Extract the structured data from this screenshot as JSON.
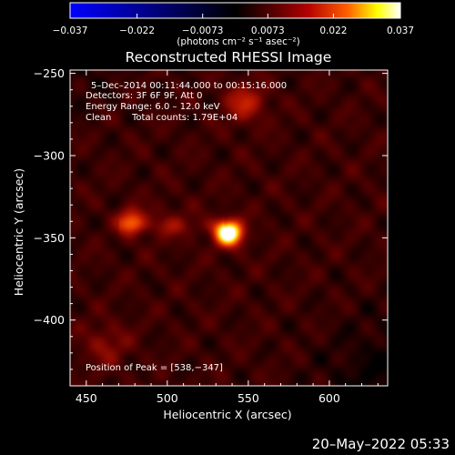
{
  "chart_data": {
    "type": "heatmap",
    "title": "Reconstructed RHESSI Image",
    "xlabel": "Heliocentric X (arcsec)",
    "ylabel": "Heliocentric Y (arcsec)",
    "xlim": [
      440,
      636
    ],
    "ylim": [
      -440,
      -248
    ],
    "x_ticks": [
      450,
      500,
      550,
      600
    ],
    "y_ticks": [
      -250,
      -300,
      -350,
      -400
    ],
    "colorbar": {
      "range": [
        -0.037,
        0.037
      ],
      "tick_labels": [
        "−0.037",
        "−0.022",
        "−0.0073",
        "0.0073",
        "0.022",
        "0.037"
      ],
      "tick_values": [
        -0.037,
        -0.022,
        -0.0073,
        0.0073,
        0.022,
        0.037
      ],
      "unit_label": "(photons cm⁻² s⁻¹ asec⁻²)",
      "colors": [
        "#0000ff",
        "#000000",
        "#5a0000",
        "#b40000",
        "#ff6000",
        "#ffff00",
        "#ffffff"
      ]
    },
    "annotations": {
      "line1": "5–Dec–2014 00:11:44.000 to 00:15:16.000",
      "line2": "Detectors: 3F 6F 9F, Att 0",
      "line3": "Energy Range: 6.0 – 12.0 keV",
      "line4_method": "Clean",
      "line4_counts": "Total counts: 1.79E+04",
      "peak": "Position of Peak = [538,−347]"
    },
    "peak_position": [
      538,
      -347
    ],
    "sources": [
      {
        "x": 538,
        "y": -347,
        "sigma": 6,
        "amp": 1.0
      },
      {
        "x": 478,
        "y": -340,
        "sigma": 6,
        "amp": 0.45
      },
      {
        "x": 502,
        "y": -341,
        "sigma": 8,
        "amp": 0.12
      },
      {
        "x": 548,
        "y": -268,
        "sigma": 9,
        "amp": 0.3
      },
      {
        "x": 462,
        "y": -415,
        "sigma": 10,
        "amp": 0.18
      }
    ],
    "background_level": 0.16
  },
  "footer": {
    "timestamp": "20–May–2022 05:33"
  }
}
